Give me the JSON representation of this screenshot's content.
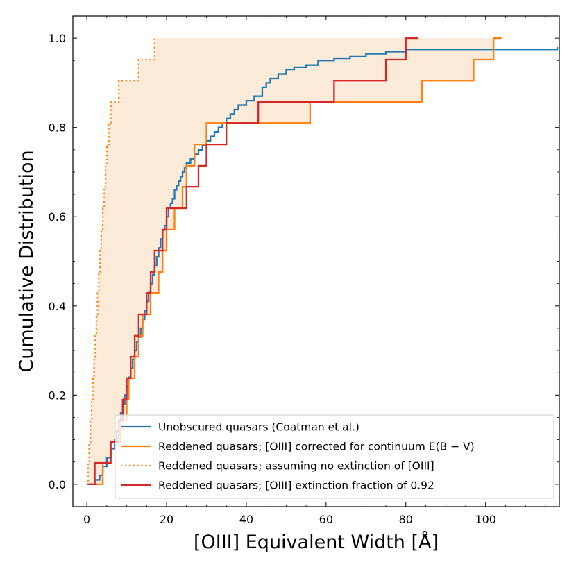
{
  "chart_data": {
    "type": "line",
    "xlabel": "[OIII] Equivalent Width [Å]",
    "ylabel": "Cumulative Distribution",
    "xlim": [
      -3.5,
      118.5
    ],
    "ylim": [
      -0.05,
      1.05
    ],
    "xticks": [
      0,
      20,
      40,
      60,
      80,
      100
    ],
    "yticks": [
      0.0,
      0.2,
      0.4,
      0.6,
      0.8,
      1.0
    ],
    "xtick_labels": [
      "0",
      "20",
      "40",
      "60",
      "80",
      "100"
    ],
    "ytick_labels": [
      "0.0",
      "0.2",
      "0.4",
      "0.6",
      "0.8",
      "1.0"
    ],
    "grid": false,
    "legend_position": "lower-right",
    "colors": {
      "blue": "#1f77b4",
      "orange": "#ff7f0e",
      "red": "#d62728",
      "shade": "#fdebd9"
    },
    "series": [
      {
        "name": "Unobscured quasars (Coatman et al.)",
        "color": "#1f77b4",
        "style": "solid",
        "x": [
          0,
          2.0,
          3.2,
          4.0,
          5.0,
          6.0,
          7.0,
          7.5,
          8.0,
          8.5,
          9.0,
          9.5,
          10.0,
          10.5,
          11.0,
          11.5,
          12.0,
          12.5,
          13.0,
          13.5,
          14.0,
          14.5,
          15.0,
          15.5,
          16.0,
          16.5,
          17.0,
          17.5,
          18.0,
          18.5,
          19.0,
          19.5,
          20.0,
          20.5,
          21.0,
          21.5,
          22.0,
          22.5,
          23.0,
          23.5,
          24.0,
          24.5,
          25.0,
          26.0,
          27.0,
          28.0,
          29.0,
          30.0,
          31.0,
          32.0,
          33.0,
          34.0,
          35.0,
          36.0,
          37.0,
          38.0,
          40.0,
          42.0,
          44.0,
          45.0,
          46.0,
          48.0,
          50.0,
          52.0,
          55.0,
          58.0,
          62.0,
          66.0,
          70.0,
          75.0,
          80.0,
          118.0
        ],
        "y": [
          0.0,
          0.01,
          0.02,
          0.04,
          0.06,
          0.08,
          0.1,
          0.12,
          0.14,
          0.16,
          0.18,
          0.2,
          0.22,
          0.24,
          0.26,
          0.28,
          0.3,
          0.32,
          0.33,
          0.35,
          0.37,
          0.39,
          0.41,
          0.43,
          0.45,
          0.47,
          0.49,
          0.51,
          0.53,
          0.55,
          0.57,
          0.58,
          0.6,
          0.62,
          0.63,
          0.64,
          0.66,
          0.67,
          0.68,
          0.69,
          0.7,
          0.71,
          0.72,
          0.73,
          0.74,
          0.75,
          0.76,
          0.77,
          0.78,
          0.79,
          0.8,
          0.81,
          0.82,
          0.83,
          0.84,
          0.85,
          0.86,
          0.87,
          0.89,
          0.9,
          0.91,
          0.92,
          0.93,
          0.935,
          0.94,
          0.95,
          0.955,
          0.96,
          0.965,
          0.97,
          0.975,
          0.98
        ]
      },
      {
        "name": "Reddened quasars; [OIII] corrected for continuum E(B−V)",
        "color": "#ff7f0e",
        "style": "solid",
        "x": [
          0,
          4.0,
          6.0,
          8.5,
          10.0,
          10.5,
          12.0,
          13.0,
          14.0,
          16.0,
          18.0,
          19.0,
          20.0,
          22.0,
          24.0,
          25.0,
          27.0,
          30.0,
          35.0,
          40.0,
          45.0,
          50.0,
          56.0,
          61.0,
          79.0,
          84.0,
          92.0,
          97.0,
          102.0,
          104.0
        ],
        "y": [
          0.0,
          0.048,
          0.095,
          0.143,
          0.19,
          0.238,
          0.286,
          0.333,
          0.381,
          0.429,
          0.476,
          0.524,
          0.571,
          0.619,
          0.667,
          0.714,
          0.762,
          0.81,
          0.81,
          0.81,
          0.81,
          0.81,
          0.857,
          0.857,
          0.857,
          0.905,
          0.905,
          0.952,
          1.0,
          1.0
        ]
      },
      {
        "name": "Reddened quasars; assuming no extinction of [OIII]",
        "color": "#ff7f0e",
        "style": "dotted",
        "x": [
          0,
          0.3,
          0.6,
          0.9,
          1.2,
          1.5,
          1.8,
          2.1,
          2.4,
          2.7,
          3.0,
          3.3,
          3.6,
          4.0,
          4.3,
          4.7,
          5.0,
          5.5,
          6.0,
          7.0,
          8.0,
          9.5,
          11.0,
          13.0,
          14.0,
          16.0,
          17.0,
          17.5
        ],
        "y": [
          0.0,
          0.048,
          0.095,
          0.143,
          0.19,
          0.238,
          0.286,
          0.333,
          0.381,
          0.429,
          0.476,
          0.524,
          0.571,
          0.619,
          0.667,
          0.714,
          0.762,
          0.81,
          0.857,
          0.857,
          0.905,
          0.905,
          0.905,
          0.952,
          0.952,
          0.952,
          1.0,
          1.0
        ]
      },
      {
        "name": "Reddened quasars; [OIII] extinction fraction of 0.92",
        "color": "#d62728",
        "style": "solid",
        "x": [
          0,
          2.0,
          4.0,
          5.0,
          6.0,
          7.5,
          8.0,
          9.0,
          10.0,
          11.0,
          12.0,
          13.0,
          15.0,
          16.0,
          17.0,
          18.0,
          19.0,
          20.0,
          22.0,
          25.0,
          28.0,
          30.0,
          32.0,
          35.0,
          40.0,
          43.0,
          53.0,
          62.0,
          68.0,
          75.0,
          80.0,
          83.0
        ],
        "y": [
          0.0,
          0.048,
          0.048,
          0.048,
          0.095,
          0.095,
          0.143,
          0.19,
          0.238,
          0.286,
          0.333,
          0.381,
          0.429,
          0.476,
          0.524,
          0.524,
          0.571,
          0.619,
          0.619,
          0.667,
          0.714,
          0.762,
          0.762,
          0.81,
          0.81,
          0.857,
          0.857,
          0.905,
          0.905,
          0.952,
          1.0,
          1.0
        ]
      }
    ]
  },
  "legend": [
    {
      "label": "Unobscured quasars (Coatman et al.)",
      "color": "#1f77b4",
      "style": "solid"
    },
    {
      "label": "Reddened quasars; [OIII] corrected for continuum E(B − V)",
      "color": "#ff7f0e",
      "style": "solid"
    },
    {
      "label": "Reddened quasars; assuming no extinction of [OIII]",
      "color": "#ff7f0e",
      "style": "dotted"
    },
    {
      "label": "Reddened quasars; [OIII] extinction fraction of 0.92",
      "color": "#d62728",
      "style": "solid"
    }
  ]
}
